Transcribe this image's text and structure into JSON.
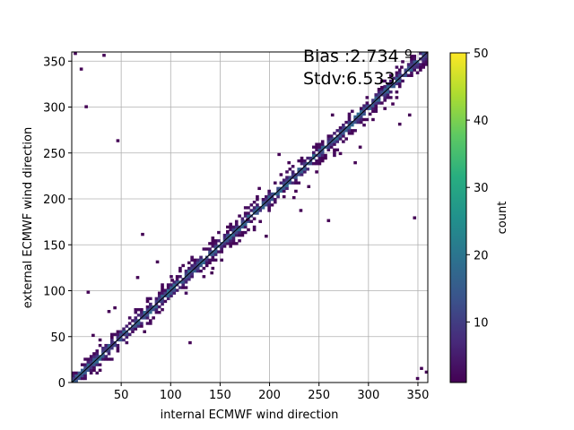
{
  "chart_data": {
    "type": "heatmap",
    "title": "",
    "xlabel": "internal ECMWF wind direction",
    "ylabel": "external ECMWF wind direction",
    "xlim": [
      0,
      360
    ],
    "ylim": [
      0,
      360
    ],
    "x_ticks": [
      50,
      100,
      150,
      200,
      250,
      300,
      350
    ],
    "y_ticks": [
      0,
      50,
      100,
      150,
      200,
      250,
      300,
      350
    ],
    "grid": true,
    "bin_size": 3,
    "annotations": [
      "Bias :2.734 º",
      "Stdv:6.533"
    ],
    "colorbar": {
      "label": "count",
      "range": [
        1,
        50
      ],
      "ticks": [
        10,
        20,
        30,
        40,
        50
      ],
      "colormap": "viridis"
    },
    "reference_line": {
      "from": [
        0,
        0
      ],
      "to": [
        360,
        360
      ]
    },
    "diagonal_band": {
      "half_width_deg": 6,
      "outer_half_width_deg": 12
    },
    "outlier_cells": [
      [
        2,
        357
      ],
      [
        8,
        340
      ],
      [
        13,
        299
      ],
      [
        31,
        355
      ],
      [
        45,
        262
      ],
      [
        15,
        97
      ],
      [
        42,
        80
      ],
      [
        36,
        76
      ],
      [
        70,
        160
      ],
      [
        65,
        113
      ],
      [
        118,
        42
      ],
      [
        156,
        163
      ],
      [
        162,
        150
      ],
      [
        176,
        176
      ],
      [
        195,
        158
      ],
      [
        208,
        247
      ],
      [
        218,
        238
      ],
      [
        223,
        200
      ],
      [
        230,
        186
      ],
      [
        238,
        212
      ],
      [
        258,
        175
      ],
      [
        285,
        238
      ],
      [
        290,
        255
      ],
      [
        323,
        302
      ],
      [
        330,
        280
      ],
      [
        340,
        290
      ],
      [
        345,
        178
      ],
      [
        352,
        14
      ],
      [
        357,
        10
      ],
      [
        348,
        3
      ],
      [
        20,
        50
      ],
      [
        27,
        45
      ],
      [
        85,
        130
      ],
      [
        100,
        110
      ],
      [
        140,
        118
      ],
      [
        262,
        290
      ],
      [
        312,
        320
      ],
      [
        332,
        342
      ],
      [
        270,
        248
      ],
      [
        188,
        210
      ]
    ],
    "color_stops": [
      "#440154",
      "#472a7a",
      "#3b528b",
      "#2c728e",
      "#21918c",
      "#28ae80",
      "#5ec962",
      "#addc30",
      "#fde725"
    ]
  }
}
